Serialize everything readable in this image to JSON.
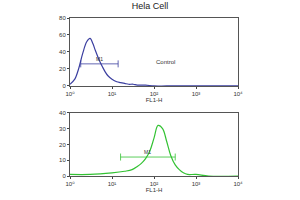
{
  "chart_data": [
    {
      "type": "line",
      "title": "Hela Cell",
      "xlabel": "FL1-H",
      "log": "x",
      "x": [
        1,
        1.3,
        1.6,
        2,
        2.5,
        3,
        3.5,
        4,
        5,
        6,
        7,
        8,
        10,
        13,
        16,
        20,
        25,
        32,
        40,
        63,
        100,
        200,
        1000,
        10000
      ],
      "series": [
        {
          "name": "Control",
          "color": "#3b3fa0",
          "values": [
            2,
            8,
            20,
            38,
            52,
            56,
            50,
            42,
            30,
            22,
            16,
            12,
            8,
            5,
            4,
            3,
            2,
            2,
            1,
            1,
            0,
            0,
            0,
            0
          ]
        }
      ],
      "xlim": [
        1,
        10000
      ],
      "xticks": [
        {
          "value": 1,
          "label": "10⁰"
        },
        {
          "value": 10,
          "label": "10¹"
        },
        {
          "value": 100,
          "label": "10²"
        },
        {
          "value": 1000,
          "label": "10³"
        },
        {
          "value": 10000,
          "label": "10⁴"
        }
      ],
      "ylim": [
        0,
        80
      ],
      "yticks": [
        0,
        20,
        40,
        60,
        80
      ],
      "gate": {
        "label": "M1",
        "x": [
          1.8,
          14
        ],
        "y": 26
      },
      "annotations": [
        {
          "text": "Control",
          "x": 100,
          "y": 28
        }
      ]
    },
    {
      "type": "line",
      "xlabel": "FL1-H",
      "log": "x",
      "x": [
        1,
        3,
        10,
        20,
        30,
        40,
        50,
        63,
        80,
        100,
        125,
        160,
        200,
        250,
        320,
        400,
        500,
        630,
        1000,
        2000,
        10000
      ],
      "series": [
        {
          "color": "#33c233",
          "values": [
            1,
            1,
            2,
            3,
            4,
            6,
            8,
            11,
            16,
            24,
            32,
            30,
            22,
            13,
            7,
            4,
            2,
            1,
            1,
            0,
            0
          ]
        }
      ],
      "xlim": [
        1,
        10000
      ],
      "xticks": [
        {
          "value": 1,
          "label": "10⁰"
        },
        {
          "value": 10,
          "label": "10¹"
        },
        {
          "value": 100,
          "label": "10²"
        },
        {
          "value": 1000,
          "label": "10³"
        },
        {
          "value": 10000,
          "label": "10⁴"
        }
      ],
      "ylim": [
        0,
        40
      ],
      "yticks": [
        0,
        10,
        20,
        30,
        40
      ],
      "gate": {
        "label": "M1",
        "x": [
          16,
          320
        ],
        "y": 12
      }
    }
  ]
}
